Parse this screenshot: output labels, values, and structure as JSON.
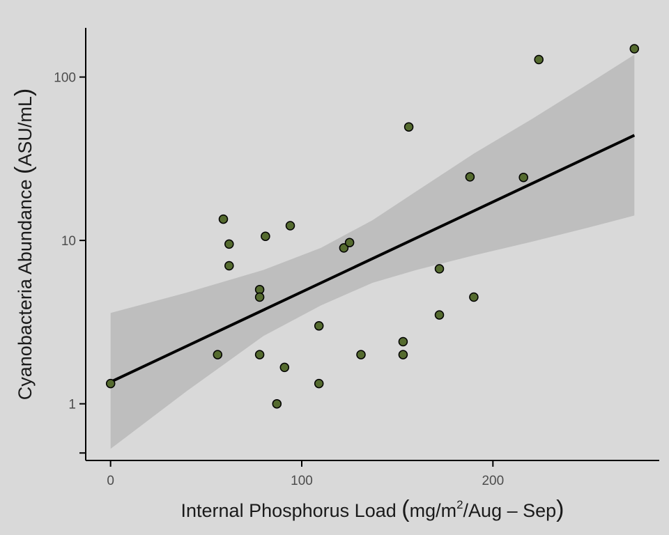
{
  "chart_data": {
    "type": "scatter",
    "title": "",
    "xlabel": "Internal Phosphorus Load (mg/m²/Aug – Sep)",
    "ylabel": "Cyanobacteria Abundance (ASU/mL)",
    "xlabel_parts": {
      "main": "Internal Phosphorus Load ",
      "unit_pre": "mg/m",
      "sup": "2",
      "unit_post": "/Aug – Sep"
    },
    "ylabel_parts": {
      "main": "Cyanobacteria Abundance ",
      "unit": "ASU/mL"
    },
    "xlim": [
      -13,
      287
    ],
    "ylim": [
      0.45,
      200
    ],
    "y_scale": "log10",
    "x_ticks": [
      0,
      100,
      200
    ],
    "x_tick_labels": [
      "0",
      "100",
      "200"
    ],
    "y_ticks": [
      1,
      10,
      100
    ],
    "y_tick_labels": [
      "1",
      "10",
      "100"
    ],
    "y_minor_ticks": [
      0.5
    ],
    "grid": false,
    "point_color": "#556b2f",
    "points": [
      {
        "x": 0,
        "y": 1.33
      },
      {
        "x": 56,
        "y": 2.0
      },
      {
        "x": 59,
        "y": 13.5
      },
      {
        "x": 62,
        "y": 9.5
      },
      {
        "x": 62,
        "y": 7.0
      },
      {
        "x": 78,
        "y": 5.0
      },
      {
        "x": 78,
        "y": 4.5
      },
      {
        "x": 78,
        "y": 2.0
      },
      {
        "x": 81,
        "y": 10.6
      },
      {
        "x": 87,
        "y": 1.0
      },
      {
        "x": 91,
        "y": 1.67
      },
      {
        "x": 94,
        "y": 12.3
      },
      {
        "x": 109,
        "y": 3.0
      },
      {
        "x": 109,
        "y": 1.33
      },
      {
        "x": 122,
        "y": 9.0
      },
      {
        "x": 125,
        "y": 9.7
      },
      {
        "x": 131,
        "y": 2.0
      },
      {
        "x": 153,
        "y": 2.4
      },
      {
        "x": 153,
        "y": 2.0
      },
      {
        "x": 156,
        "y": 49.5
      },
      {
        "x": 172,
        "y": 6.7
      },
      {
        "x": 172,
        "y": 3.5
      },
      {
        "x": 188,
        "y": 24.5
      },
      {
        "x": 190,
        "y": 4.5
      },
      {
        "x": 216,
        "y": 24.3
      },
      {
        "x": 224,
        "y": 128
      },
      {
        "x": 274,
        "y": 149
      }
    ],
    "fit_line": {
      "x": [
        0,
        274
      ],
      "y": [
        1.36,
        44
      ]
    },
    "confidence_band": {
      "x": [
        0,
        40,
        80,
        110,
        137,
        160,
        190,
        220,
        250,
        274
      ],
      "lower": [
        0.53,
        1.2,
        2.6,
        4.0,
        5.5,
        6.6,
        8.1,
        9.8,
        12.0,
        14.2
      ],
      "upper": [
        3.6,
        4.8,
        6.6,
        9.0,
        13.3,
        20.0,
        34.0,
        55.0,
        91.0,
        137.0
      ]
    }
  }
}
